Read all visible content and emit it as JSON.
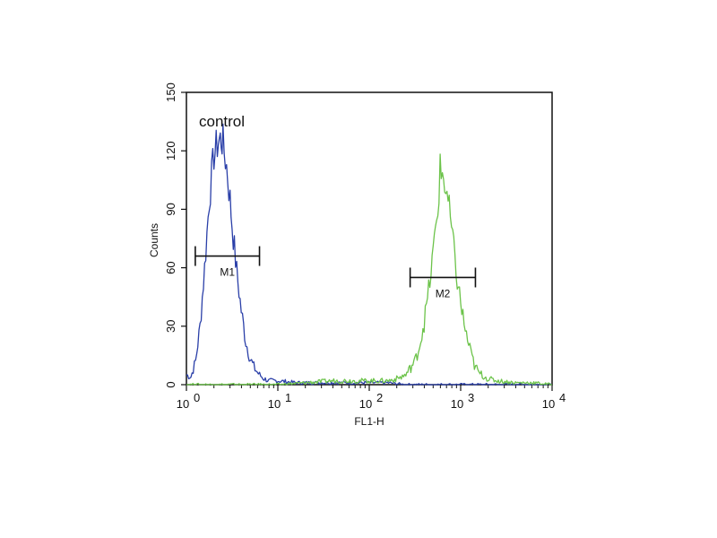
{
  "chart_data": {
    "type": "line",
    "xlabel": "FL1-H",
    "ylabel": "Counts",
    "x_scale": "log",
    "xlim": [
      1,
      10000
    ],
    "ylim": [
      0,
      150
    ],
    "grid": false,
    "x_ticks": [
      {
        "value": 1,
        "base": "10",
        "exp": "0"
      },
      {
        "value": 10,
        "base": "10",
        "exp": "1"
      },
      {
        "value": 100,
        "base": "10",
        "exp": "2"
      },
      {
        "value": 1000,
        "base": "10",
        "exp": "3"
      },
      {
        "value": 10000,
        "base": "10",
        "exp": "4"
      }
    ],
    "y_ticks": [
      0,
      30,
      60,
      90,
      120,
      150
    ],
    "annotation": "control",
    "series": [
      {
        "color": "#2a3fa8",
        "x": [
          1.0,
          1.12,
          1.26,
          1.41,
          1.58,
          1.78,
          2.0,
          2.24,
          2.4,
          2.51,
          2.75,
          3.0,
          3.16,
          3.55,
          3.98,
          4.47,
          5.01,
          5.62,
          6.31,
          7.08,
          7.94,
          10.0,
          15.8,
          25.1,
          39.8,
          63.1,
          100,
          158,
          251,
          398,
          631,
          1000,
          1585,
          2512,
          3981,
          6310,
          10000
        ],
        "y": [
          5,
          4,
          12,
          30,
          60,
          95,
          118,
          125,
          126,
          124,
          112,
          95,
          82,
          58,
          38,
          22,
          13,
          8,
          5,
          3,
          2,
          2,
          1,
          1,
          1,
          1,
          1,
          1,
          0,
          0,
          0,
          0,
          0,
          0,
          0,
          0,
          0
        ]
      },
      {
        "color": "#6cc34a",
        "x": [
          1.0,
          10.0,
          20.0,
          39.8,
          63.1,
          100,
          158,
          200,
          251,
          316,
          355,
          398,
          447,
          501,
          562,
          596,
          631,
          708,
          794,
          891,
          1000,
          1122,
          1259,
          1413,
          1585,
          1995,
          2512,
          3981,
          6310,
          10000
        ],
        "y": [
          0,
          0,
          1,
          2,
          2,
          2,
          2,
          3,
          5,
          12,
          20,
          32,
          48,
          68,
          90,
          110,
          108,
          98,
          80,
          58,
          42,
          28,
          18,
          10,
          6,
          3,
          2,
          1,
          1,
          0
        ]
      }
    ],
    "markers": [
      {
        "label": "M1",
        "x_start": 1.25,
        "x_end": 6.3,
        "y": 66
      },
      {
        "label": "M2",
        "x_start": 280,
        "x_end": 1450,
        "y": 55
      }
    ]
  }
}
